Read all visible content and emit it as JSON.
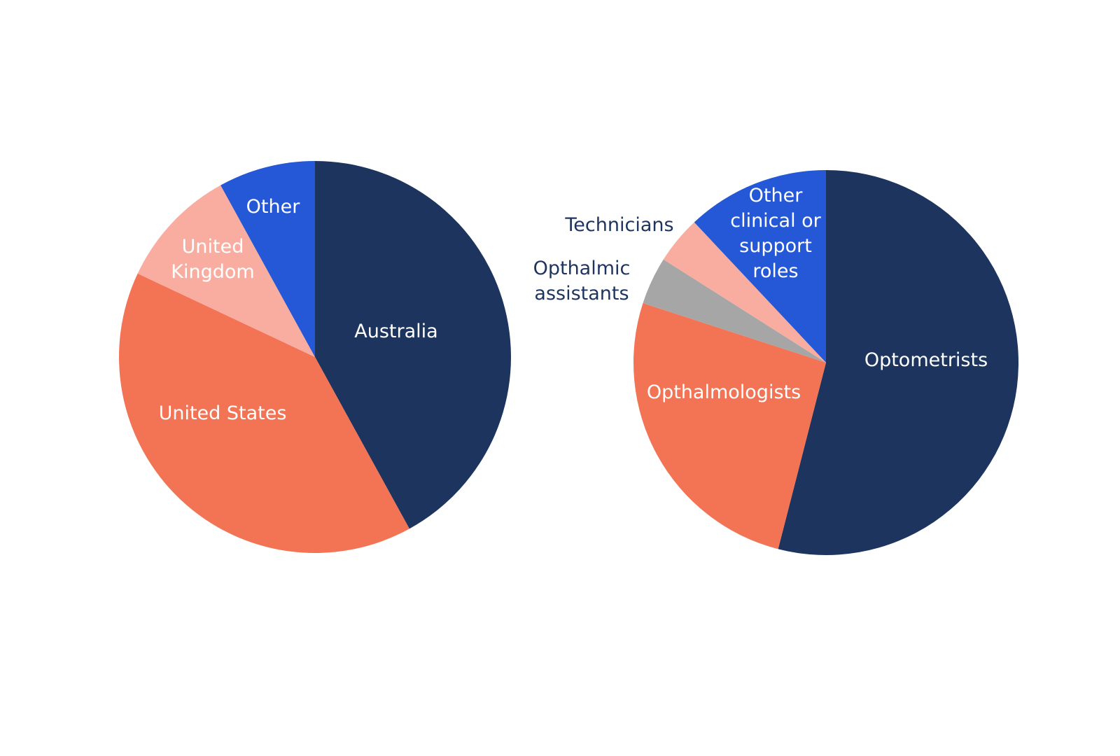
{
  "chart_data": [
    {
      "type": "pie",
      "categories": [
        "Australia",
        "United States",
        "United Kingdom",
        "Other"
      ],
      "values": [
        42,
        40,
        10,
        8
      ],
      "colors": [
        "#1d355e",
        "#f37355",
        "#f9ada0",
        "#2458d6"
      ]
    },
    {
      "type": "pie",
      "categories": [
        "Optometrists",
        "Opthalmologists",
        "Opthalmic assistants",
        "Technicians",
        "Other clinical or support roles"
      ],
      "values": [
        54,
        26,
        4,
        4,
        12
      ],
      "colors": [
        "#1d355e",
        "#f37355",
        "#a6a6a6",
        "#f9ada0",
        "#2458d6"
      ]
    }
  ]
}
